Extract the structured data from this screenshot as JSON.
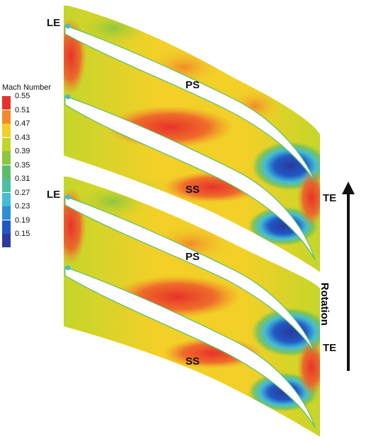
{
  "labels": {
    "le_top": "LE",
    "le_mid": "LE",
    "ps_top": "PS",
    "ss_top": "SS",
    "ps_bottom": "PS",
    "ss_bottom": "SS",
    "te_top": "TE",
    "te_bottom": "TE",
    "rotation": "Rotation"
  },
  "legend": {
    "title": "Mach Number",
    "entries": [
      {
        "value": "0.55",
        "color": "#e8322a"
      },
      {
        "value": "0.51",
        "color": "#f28a2a"
      },
      {
        "value": "0.47",
        "color": "#f2d028"
      },
      {
        "value": "0.43",
        "color": "#c2d62a"
      },
      {
        "value": "0.39",
        "color": "#8dc63f"
      },
      {
        "value": "0.35",
        "color": "#5bbd6c"
      },
      {
        "value": "0.31",
        "color": "#4dbfa1"
      },
      {
        "value": "0.27",
        "color": "#43bcd6"
      },
      {
        "value": "0.23",
        "color": "#2f8fd4"
      },
      {
        "value": "0.19",
        "color": "#2157c4"
      },
      {
        "value": "0.15",
        "color": "#2a3a9e"
      }
    ]
  },
  "colors": {
    "high": "#e8322a",
    "orange": "#f28a2a",
    "yellow": "#f2d028",
    "green": "#8dc63f",
    "cyan": "#43bcd6",
    "blue": "#2a3a9e"
  }
}
